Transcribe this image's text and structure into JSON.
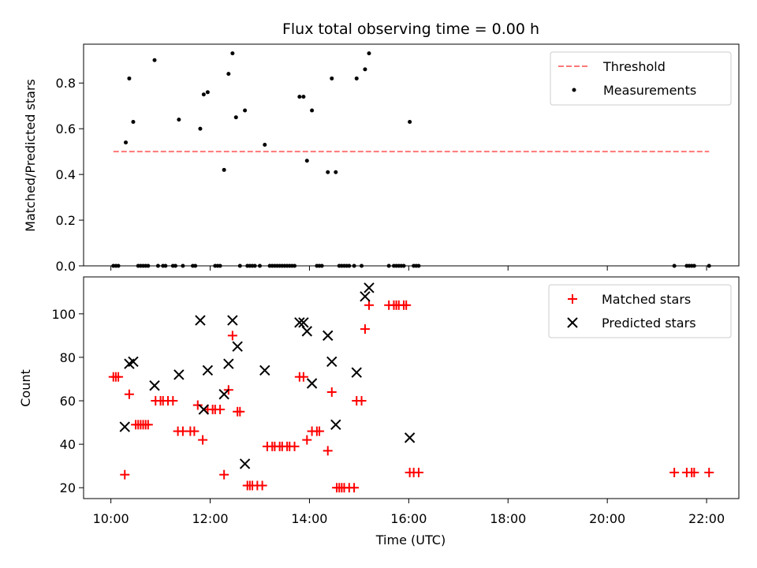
{
  "chart_data": [
    {
      "type": "scatter",
      "title": "Flux total observing time = 0.00 h",
      "xlabel": "",
      "ylabel": "Matched/Predicted stars",
      "ylim": [
        0,
        0.97
      ],
      "yticks": [
        0.0,
        0.2,
        0.4,
        0.6,
        0.8
      ],
      "ytick_labels": [
        "0.0",
        "0.2",
        "0.4",
        "0.6",
        "0.8"
      ],
      "xlim": [
        9.45,
        22.65
      ],
      "xticks": [
        10,
        12,
        14,
        16,
        18,
        20,
        22
      ],
      "grid": false,
      "legend_position": "top-right",
      "series": [
        {
          "name": "Threshold",
          "style": "dashed-line",
          "color": "#ff7777",
          "x": [
            10.05,
            22.05
          ],
          "y": [
            0.5,
            0.5
          ]
        },
        {
          "name": "Measurements",
          "style": "dot",
          "color": "#000000",
          "points": [
            [
              10.05,
              0.0
            ],
            [
              10.1,
              0.0
            ],
            [
              10.15,
              0.0
            ],
            [
              10.3,
              0.54
            ],
            [
              10.37,
              0.82
            ],
            [
              10.45,
              0.63
            ],
            [
              10.55,
              0.0
            ],
            [
              10.6,
              0.0
            ],
            [
              10.65,
              0.0
            ],
            [
              10.7,
              0.0
            ],
            [
              10.75,
              0.0
            ],
            [
              10.88,
              0.9
            ],
            [
              10.95,
              0.0
            ],
            [
              11.05,
              0.0
            ],
            [
              11.1,
              0.0
            ],
            [
              11.25,
              0.0
            ],
            [
              11.3,
              0.0
            ],
            [
              11.37,
              0.64
            ],
            [
              11.45,
              0.0
            ],
            [
              11.65,
              0.0
            ],
            [
              11.7,
              0.0
            ],
            [
              11.8,
              0.6
            ],
            [
              11.87,
              0.75
            ],
            [
              11.95,
              0.76
            ],
            [
              12.1,
              0.0
            ],
            [
              12.15,
              0.0
            ],
            [
              12.2,
              0.0
            ],
            [
              12.28,
              0.42
            ],
            [
              12.37,
              0.84
            ],
            [
              12.45,
              0.93
            ],
            [
              12.52,
              0.65
            ],
            [
              12.6,
              0.0
            ],
            [
              12.7,
              0.68
            ],
            [
              12.75,
              0.0
            ],
            [
              12.8,
              0.0
            ],
            [
              12.85,
              0.0
            ],
            [
              12.9,
              0.0
            ],
            [
              13.0,
              0.0
            ],
            [
              13.1,
              0.53
            ],
            [
              13.2,
              0.0
            ],
            [
              13.25,
              0.0
            ],
            [
              13.3,
              0.0
            ],
            [
              13.35,
              0.0
            ],
            [
              13.4,
              0.0
            ],
            [
              13.45,
              0.0
            ],
            [
              13.5,
              0.0
            ],
            [
              13.55,
              0.0
            ],
            [
              13.6,
              0.0
            ],
            [
              13.65,
              0.0
            ],
            [
              13.7,
              0.0
            ],
            [
              13.8,
              0.74
            ],
            [
              13.88,
              0.74
            ],
            [
              13.95,
              0.46
            ],
            [
              14.05,
              0.68
            ],
            [
              14.15,
              0.0
            ],
            [
              14.2,
              0.0
            ],
            [
              14.25,
              0.0
            ],
            [
              14.37,
              0.41
            ],
            [
              14.45,
              0.82
            ],
            [
              14.53,
              0.41
            ],
            [
              14.6,
              0.0
            ],
            [
              14.65,
              0.0
            ],
            [
              14.7,
              0.0
            ],
            [
              14.75,
              0.0
            ],
            [
              14.8,
              0.0
            ],
            [
              14.9,
              0.0
            ],
            [
              14.95,
              0.82
            ],
            [
              15.05,
              0.0
            ],
            [
              15.12,
              0.86
            ],
            [
              15.2,
              0.93
            ],
            [
              15.6,
              0.0
            ],
            [
              15.7,
              0.0
            ],
            [
              15.75,
              0.0
            ],
            [
              15.8,
              0.0
            ],
            [
              15.85,
              0.0
            ],
            [
              15.9,
              0.0
            ],
            [
              16.02,
              0.63
            ],
            [
              16.1,
              0.0
            ],
            [
              16.15,
              0.0
            ],
            [
              16.2,
              0.0
            ],
            [
              21.35,
              0.0
            ],
            [
              21.6,
              0.0
            ],
            [
              21.65,
              0.0
            ],
            [
              21.7,
              0.0
            ],
            [
              21.75,
              0.0
            ],
            [
              22.05,
              0.0
            ]
          ]
        }
      ]
    },
    {
      "type": "scatter",
      "title": "",
      "xlabel": "Time (UTC)",
      "ylabel": "Count",
      "ylim": [
        15,
        117
      ],
      "yticks": [
        20,
        40,
        60,
        80,
        100
      ],
      "xlim": [
        9.45,
        22.65
      ],
      "xticks": [
        10,
        12,
        14,
        16,
        18,
        20,
        22
      ],
      "xtick_labels": [
        "10:00",
        "12:00",
        "14:00",
        "16:00",
        "18:00",
        "20:00",
        "22:00"
      ],
      "grid": false,
      "legend_position": "top-right",
      "series": [
        {
          "name": "Matched stars",
          "marker": "plus",
          "color": "#ff0000",
          "points": [
            [
              10.05,
              71
            ],
            [
              10.1,
              71
            ],
            [
              10.15,
              71
            ],
            [
              10.28,
              26
            ],
            [
              10.37,
              63
            ],
            [
              10.5,
              49
            ],
            [
              10.55,
              49
            ],
            [
              10.6,
              49
            ],
            [
              10.65,
              49
            ],
            [
              10.7,
              49
            ],
            [
              10.75,
              49
            ],
            [
              10.9,
              60
            ],
            [
              11.0,
              60
            ],
            [
              11.05,
              60
            ],
            [
              11.15,
              60
            ],
            [
              11.25,
              60
            ],
            [
              11.35,
              46
            ],
            [
              11.45,
              46
            ],
            [
              11.6,
              46
            ],
            [
              11.68,
              46
            ],
            [
              11.75,
              58
            ],
            [
              11.85,
              42
            ],
            [
              11.95,
              56
            ],
            [
              12.05,
              56
            ],
            [
              12.1,
              56
            ],
            [
              12.2,
              56
            ],
            [
              12.28,
              26
            ],
            [
              12.37,
              65
            ],
            [
              12.45,
              90
            ],
            [
              12.55,
              55
            ],
            [
              12.6,
              55
            ],
            [
              12.75,
              21
            ],
            [
              12.8,
              21
            ],
            [
              12.85,
              21
            ],
            [
              12.95,
              21
            ],
            [
              13.05,
              21
            ],
            [
              13.15,
              39
            ],
            [
              13.25,
              39
            ],
            [
              13.3,
              39
            ],
            [
              13.4,
              39
            ],
            [
              13.45,
              39
            ],
            [
              13.55,
              39
            ],
            [
              13.6,
              39
            ],
            [
              13.7,
              39
            ],
            [
              13.8,
              71
            ],
            [
              13.88,
              71
            ],
            [
              13.95,
              42
            ],
            [
              14.05,
              46
            ],
            [
              14.15,
              46
            ],
            [
              14.2,
              46
            ],
            [
              14.37,
              37
            ],
            [
              14.45,
              64
            ],
            [
              14.55,
              20
            ],
            [
              14.6,
              20
            ],
            [
              14.65,
              20
            ],
            [
              14.7,
              20
            ],
            [
              14.8,
              20
            ],
            [
              14.9,
              20
            ],
            [
              14.95,
              60
            ],
            [
              15.05,
              60
            ],
            [
              15.12,
              93
            ],
            [
              15.2,
              104
            ],
            [
              15.6,
              104
            ],
            [
              15.7,
              104
            ],
            [
              15.75,
              104
            ],
            [
              15.8,
              104
            ],
            [
              15.9,
              104
            ],
            [
              15.95,
              104
            ],
            [
              16.02,
              27
            ],
            [
              16.1,
              27
            ],
            [
              16.2,
              27
            ],
            [
              21.35,
              27
            ],
            [
              21.6,
              27
            ],
            [
              21.7,
              27
            ],
            [
              21.75,
              27
            ],
            [
              22.05,
              27
            ]
          ]
        },
        {
          "name": "Predicted stars",
          "marker": "x",
          "color": "#000000",
          "points": [
            [
              10.28,
              48
            ],
            [
              10.37,
              77
            ],
            [
              10.45,
              78
            ],
            [
              10.88,
              67
            ],
            [
              11.37,
              72
            ],
            [
              11.8,
              97
            ],
            [
              11.87,
              56
            ],
            [
              11.95,
              74
            ],
            [
              12.28,
              63
            ],
            [
              12.37,
              77
            ],
            [
              12.45,
              97
            ],
            [
              12.55,
              85
            ],
            [
              12.7,
              31
            ],
            [
              13.1,
              74
            ],
            [
              13.8,
              96
            ],
            [
              13.88,
              96
            ],
            [
              13.95,
              92
            ],
            [
              14.05,
              68
            ],
            [
              14.37,
              90
            ],
            [
              14.45,
              78
            ],
            [
              14.53,
              49
            ],
            [
              14.95,
              73
            ],
            [
              15.12,
              108
            ],
            [
              15.2,
              112
            ],
            [
              16.02,
              43
            ]
          ]
        }
      ]
    }
  ]
}
